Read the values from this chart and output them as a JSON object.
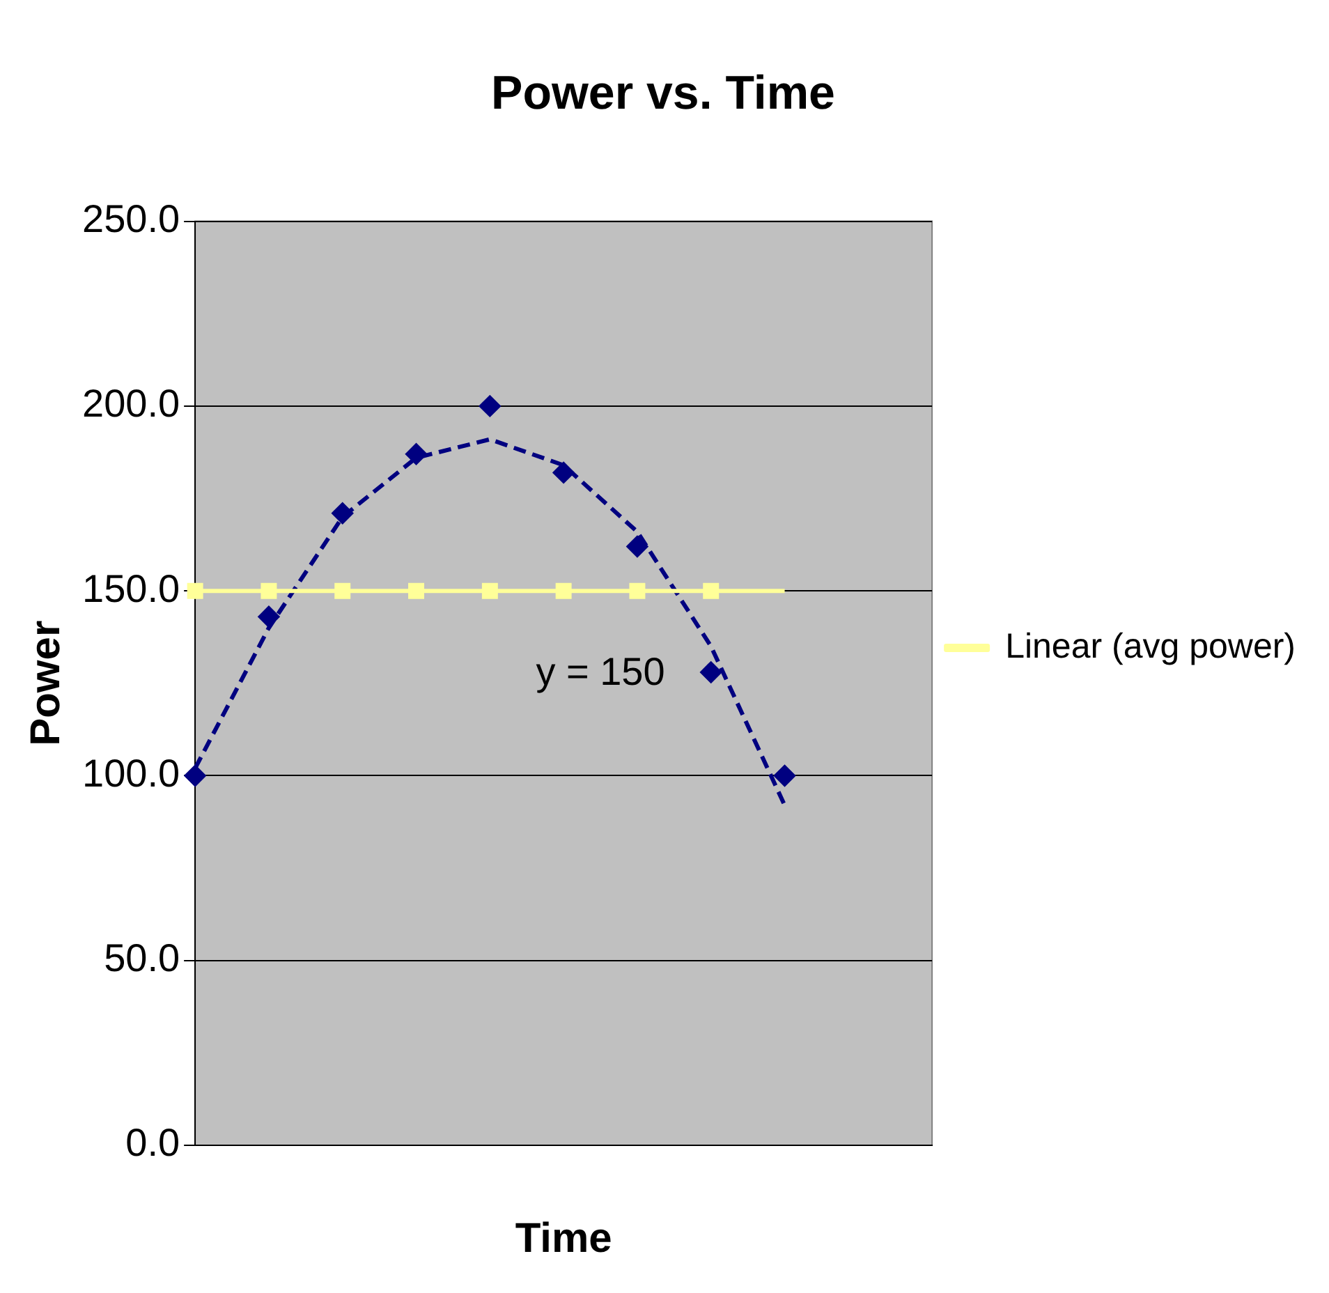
{
  "chart_data": {
    "type": "line",
    "title": "Power vs. Time",
    "xlabel": "Time",
    "ylabel": "Power",
    "categories": [
      null,
      null,
      null,
      null,
      null,
      null,
      null,
      null,
      null,
      null,
      null
    ],
    "series": [
      {
        "type": "scatter",
        "color": "#000080",
        "marker": "diamond",
        "values": [
          100,
          143,
          171,
          187,
          200,
          182,
          162,
          128,
          100,
          null,
          null
        ]
      },
      {
        "type": "scatter",
        "color": "#ffff99",
        "marker": "square",
        "values": [
          150,
          150,
          150,
          150,
          150,
          150,
          150,
          150,
          null,
          null,
          null
        ]
      },
      {
        "name": "Linear (avg power)",
        "color": "#ffff99",
        "marker": "none",
        "line_style": "solid",
        "values": [
          150,
          150,
          150,
          150,
          150,
          150,
          150,
          150,
          150,
          null,
          null
        ]
      },
      {
        "color": "#000080",
        "marker": "none",
        "line_style": "dashed",
        "values": [
          102,
          140,
          170,
          186,
          191,
          184,
          166,
          135,
          92,
          null,
          null
        ]
      }
    ],
    "ylim": [
      0,
      250
    ],
    "yticks": [
      {
        "value": 0,
        "label": "0.0"
      },
      {
        "value": 50,
        "label": "50.0"
      },
      {
        "value": 100,
        "label": "100.0"
      },
      {
        "value": 150,
        "label": "150.0"
      },
      {
        "value": 200,
        "label": "200.0"
      },
      {
        "value": 250,
        "label": "250.0"
      }
    ],
    "grid": "y",
    "legend": "right",
    "tick_labels": "y",
    "annotations": [
      "y = 150"
    ]
  }
}
